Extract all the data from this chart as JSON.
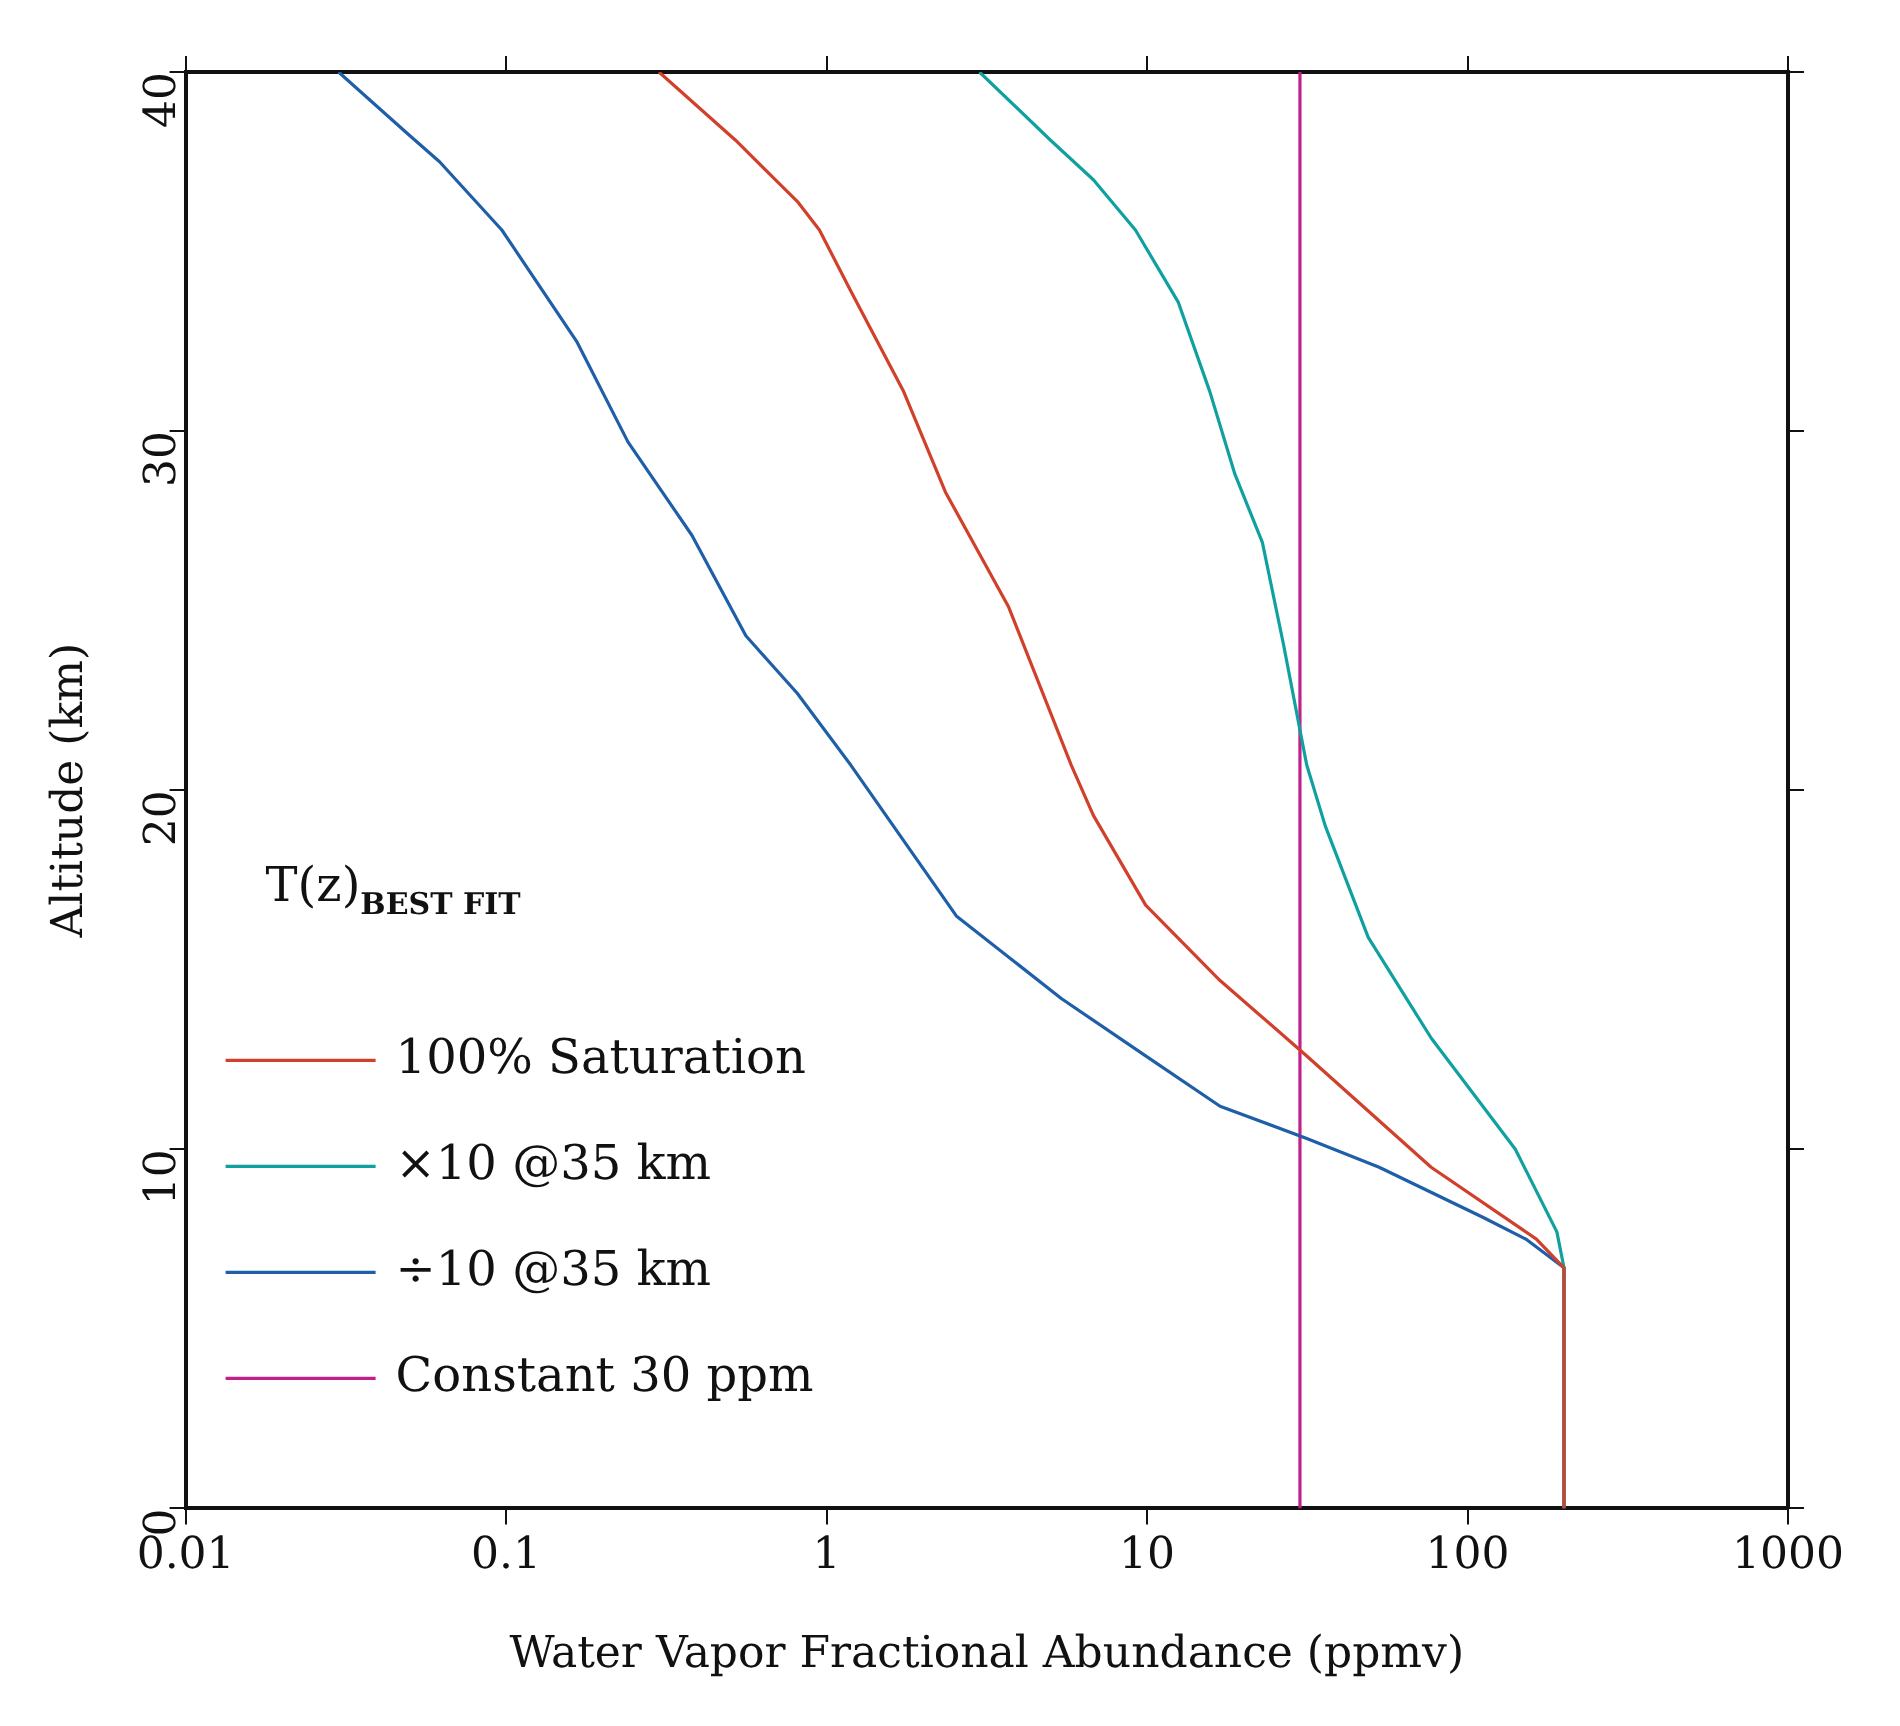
{
  "chart_data": {
    "type": "line",
    "xlabel": "Water Vapor Fractional Abundance (ppmv)",
    "ylabel": "Altitude (km)",
    "log": "x",
    "xlim": [
      0.01,
      1000
    ],
    "xticks": [
      0.01,
      0.1,
      1,
      10,
      100,
      1000
    ],
    "ylim": [
      0,
      40
    ],
    "yticks": [
      0,
      10,
      20,
      30,
      40
    ],
    "grid": false,
    "legend": "bottom left",
    "marker": "none",
    "line_style": "solid",
    "annotations": [
      "T(z)$_{BEST FIT}$"
    ],
    "series": [
      {
        "name": "100% Saturation",
        "color": "#d0402a",
        "x": [
          200,
          200,
          164,
          77,
          31.5,
          16.9,
          9.9,
          6.8,
          5.8,
          3.7,
          2.35,
          1.74,
          1.19,
          0.95,
          0.81,
          0.52,
          0.3
        ],
        "values": [
          0,
          6.7,
          7.5,
          9.5,
          12.6,
          14.7,
          16.8,
          19.3,
          20.7,
          25.1,
          28.3,
          31.1,
          33.9,
          35.6,
          36.4,
          38.1,
          40
        ]
      },
      {
        "name": "×10 @35 km",
        "color": "#10a0a0",
        "x": [
          200,
          200,
          190,
          141,
          77,
          49,
          36,
          31.5,
          26.6,
          22.9,
          18.8,
          15.7,
          12.5,
          9.2,
          6.8,
          5,
          3
        ],
        "values": [
          0,
          6.7,
          7.7,
          10,
          13.1,
          15.9,
          19,
          20.7,
          24.1,
          26.9,
          28.8,
          31.1,
          33.6,
          35.6,
          37,
          38.1,
          40
        ]
      },
      {
        "name": "÷10 @35 km",
        "color": "#1f5fa8",
        "x": [
          200,
          200,
          152,
          112,
          53,
          31.5,
          16.9,
          9.9,
          5.4,
          2.54,
          1.19,
          0.81,
          0.56,
          0.38,
          0.24,
          0.166,
          0.097,
          0.062,
          0.049,
          0.03
        ],
        "values": [
          0,
          6.7,
          7.5,
          8.1,
          9.5,
          10.3,
          11.2,
          12.6,
          14.2,
          16.5,
          20.7,
          22.7,
          24.3,
          27.1,
          29.7,
          32.5,
          35.6,
          37.5,
          38.3,
          40
        ]
      },
      {
        "name": "Constant 30 ppm",
        "color": "#c0208a",
        "x": [
          30,
          30
        ],
        "values": [
          0,
          40
        ]
      }
    ]
  }
}
